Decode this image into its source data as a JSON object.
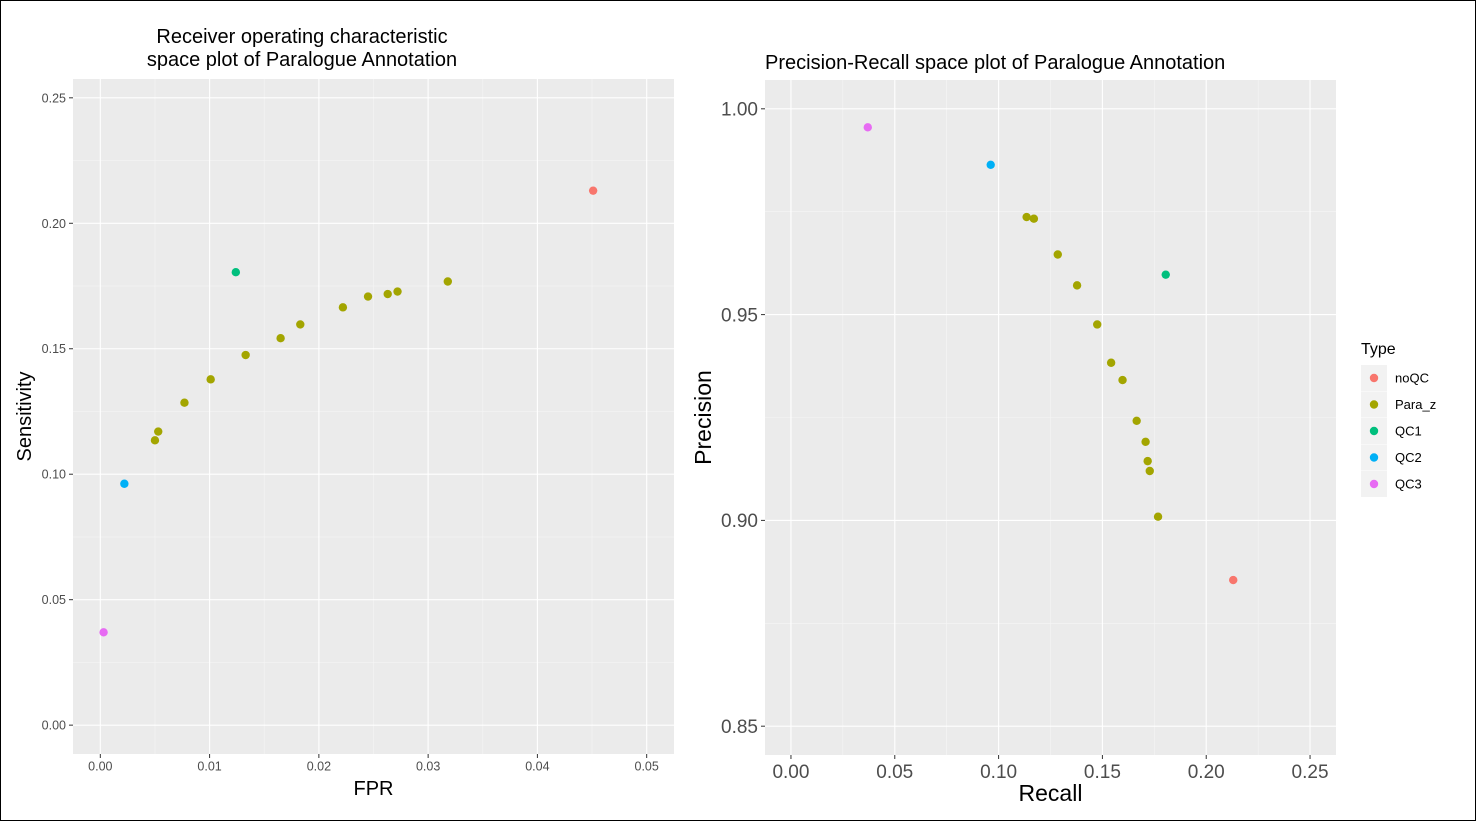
{
  "legend": {
    "title": "Type",
    "entries": [
      {
        "name": "noQC",
        "color": "#F8766D"
      },
      {
        "name": "Para_z",
        "color": "#A3A500"
      },
      {
        "name": "QC1",
        "color": "#00BF7D"
      },
      {
        "name": "QC2",
        "color": "#00B0F6"
      },
      {
        "name": "QC3",
        "color": "#E76BF3"
      }
    ]
  },
  "chart_data": [
    {
      "type": "scatter",
      "title_lines": [
        "Receiver operating characteristic",
        "space plot of Paralogue Annotation"
      ],
      "xlabel": "FPR",
      "ylabel": "Sensitivity",
      "xlim": [
        -0.0025,
        0.0525
      ],
      "ylim": [
        -0.0115,
        0.2575
      ],
      "xticks": [
        0.0,
        0.01,
        0.02,
        0.03,
        0.04,
        0.05
      ],
      "xtick_labels": [
        "0.00",
        "0.01",
        "0.02",
        "0.03",
        "0.04",
        "0.05"
      ],
      "yticks": [
        0.0,
        0.05,
        0.1,
        0.15,
        0.2,
        0.25
      ],
      "ytick_labels": [
        "0.00",
        "0.05",
        "0.10",
        "0.15",
        "0.20",
        "0.25"
      ],
      "grid": true,
      "series": [
        {
          "name": "noQC",
          "points": [
            [
              0.0451,
              0.213
            ]
          ]
        },
        {
          "name": "Para_z",
          "points": [
            [
              0.005,
              0.1135
            ],
            [
              0.0053,
              0.117
            ],
            [
              0.0077,
              0.1285
            ],
            [
              0.0101,
              0.1378
            ],
            [
              0.0133,
              0.1475
            ],
            [
              0.0165,
              0.1542
            ],
            [
              0.0183,
              0.1597
            ],
            [
              0.0222,
              0.1665
            ],
            [
              0.0245,
              0.1708
            ],
            [
              0.0263,
              0.1718
            ],
            [
              0.0272,
              0.1728
            ],
            [
              0.0318,
              0.1768
            ]
          ]
        },
        {
          "name": "QC1",
          "points": [
            [
              0.0124,
              0.1805
            ]
          ]
        },
        {
          "name": "QC2",
          "points": [
            [
              0.0022,
              0.0962
            ]
          ]
        },
        {
          "name": "QC3",
          "points": [
            [
              0.0003,
              0.037
            ]
          ]
        }
      ]
    },
    {
      "type": "scatter",
      "title_lines": [
        "Precision-Recall space plot of Paralogue Annotation"
      ],
      "xlabel": "Recall",
      "ylabel": "Precision",
      "xlim": [
        -0.0125,
        0.2625
      ],
      "ylim": [
        0.843,
        1.007
      ],
      "xticks": [
        0.0,
        0.05,
        0.1,
        0.15,
        0.2,
        0.25
      ],
      "xtick_labels": [
        "0.00",
        "0.05",
        "0.10",
        "0.15",
        "0.20",
        "0.25"
      ],
      "yticks": [
        0.85,
        0.9,
        0.95,
        1.0
      ],
      "ytick_labels": [
        "0.85",
        "0.90",
        "0.95",
        "1.00"
      ],
      "grid": true,
      "series": [
        {
          "name": "noQC",
          "points": [
            [
              0.213,
              0.8855
            ]
          ]
        },
        {
          "name": "Para_z",
          "points": [
            [
              0.1135,
              0.9737
            ],
            [
              0.117,
              0.9733
            ],
            [
              0.1285,
              0.9646
            ],
            [
              0.1378,
              0.9571
            ],
            [
              0.1475,
              0.9476
            ],
            [
              0.1542,
              0.9383
            ],
            [
              0.1597,
              0.9341
            ],
            [
              0.1665,
              0.9242
            ],
            [
              0.1708,
              0.9191
            ],
            [
              0.1718,
              0.9144
            ],
            [
              0.1728,
              0.912
            ],
            [
              0.1768,
              0.9009
            ]
          ]
        },
        {
          "name": "QC1",
          "points": [
            [
              0.1805,
              0.9597
            ]
          ]
        },
        {
          "name": "QC2",
          "points": [
            [
              0.0962,
              0.9864
            ]
          ]
        },
        {
          "name": "QC3",
          "points": [
            [
              0.037,
              0.9955
            ]
          ]
        }
      ]
    }
  ]
}
